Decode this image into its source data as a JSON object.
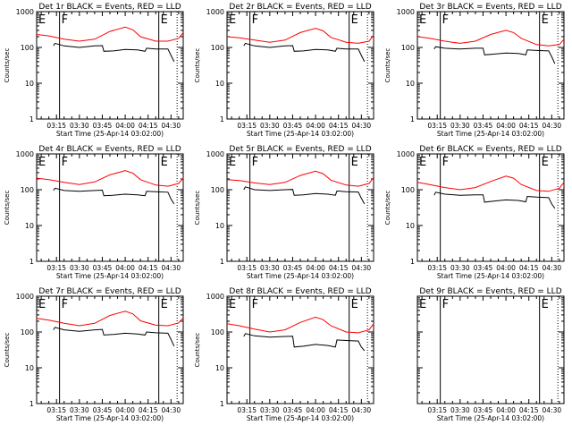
{
  "figure": {
    "x_tick_labels": [
      "03:15",
      "03:30",
      "03:45",
      "04:00",
      "04:15",
      "04:30"
    ],
    "y_tick_labels": [
      "1",
      "10",
      "100",
      "1000"
    ],
    "y_label": "Counts/sec",
    "x_label": "Start Time (25-Apr-14 03:02:00)",
    "colors": {
      "events": "#000000",
      "lld": "#ff0000",
      "axes": "#000000",
      "background": "#ffffff"
    },
    "markers": {
      "e_label": "E",
      "f_label": "F"
    }
  },
  "chart_data": [
    {
      "type": "line",
      "title": "Det 1r BLACK = Events, RED = LLD",
      "xlabel": "Start Time (25-Apr-14 03:02:00)",
      "ylabel": "Counts/sec",
      "xlim": [
        "03:02",
        "04:38"
      ],
      "ylim": [
        1,
        1000
      ],
      "y_scale": "log",
      "x_ticks": [
        "03:15",
        "03:30",
        "03:45",
        "04:00",
        "04:15",
        "04:30"
      ],
      "series": [
        {
          "name": "Events",
          "x": [
            "03:13",
            "03:14",
            "03:20",
            "03:30",
            "03:40",
            "03:45",
            "03:46",
            "03:52",
            "04:00",
            "04:08",
            "04:13",
            "04:14",
            "04:20",
            "04:28",
            "04:30",
            "04:32"
          ],
          "y": [
            110,
            130,
            110,
            100,
            110,
            112,
            78,
            80,
            88,
            85,
            78,
            95,
            90,
            90,
            60,
            40
          ]
        },
        {
          "name": "LLD",
          "x": [
            "03:02",
            "03:10",
            "03:20",
            "03:30",
            "03:40",
            "03:50",
            "04:00",
            "04:05",
            "04:10",
            "04:20",
            "04:28",
            "04:35",
            "04:38"
          ],
          "y": [
            230,
            210,
            170,
            150,
            170,
            280,
            370,
            310,
            200,
            150,
            150,
            180,
            260
          ]
        }
      ],
      "vertical_markers": [
        {
          "label": "E",
          "x": "03:02",
          "style": "solid"
        },
        {
          "label": "F",
          "x": "03:17",
          "style": "solid"
        },
        {
          "label": "E",
          "x": "04:22",
          "style": "solid"
        },
        {
          "label": "",
          "x": "04:34",
          "style": "dotted"
        }
      ]
    },
    {
      "type": "line",
      "title": "Det 2r BLACK = Events, RED = LLD",
      "xlabel": "Start Time (25-Apr-14 03:02:00)",
      "ylabel": "Counts/sec",
      "xlim": [
        "03:02",
        "04:38"
      ],
      "ylim": [
        1,
        1000
      ],
      "y_scale": "log",
      "x_ticks": [
        "03:15",
        "03:30",
        "03:45",
        "04:00",
        "04:15",
        "04:30"
      ],
      "series": [
        {
          "name": "Events",
          "x": [
            "03:13",
            "03:14",
            "03:20",
            "03:30",
            "03:40",
            "03:45",
            "03:46",
            "03:52",
            "04:00",
            "04:08",
            "04:13",
            "04:14",
            "04:20",
            "04:28",
            "04:30",
            "04:32"
          ],
          "y": [
            110,
            130,
            110,
            100,
            110,
            112,
            78,
            80,
            88,
            85,
            78,
            95,
            90,
            90,
            60,
            40
          ]
        },
        {
          "name": "LLD",
          "x": [
            "03:02",
            "03:10",
            "03:20",
            "03:30",
            "03:40",
            "03:50",
            "04:00",
            "04:05",
            "04:10",
            "04:20",
            "04:28",
            "04:35",
            "04:38"
          ],
          "y": [
            200,
            185,
            160,
            140,
            160,
            260,
            340,
            290,
            190,
            140,
            130,
            150,
            220
          ]
        }
      ],
      "vertical_markers": [
        {
          "label": "E",
          "x": "03:02",
          "style": "solid"
        },
        {
          "label": "F",
          "x": "03:17",
          "style": "solid"
        },
        {
          "label": "E",
          "x": "04:22",
          "style": "solid"
        },
        {
          "label": "",
          "x": "04:34",
          "style": "dotted"
        }
      ]
    },
    {
      "type": "line",
      "title": "Det 3r BLACK = Events, RED = LLD",
      "xlabel": "Start Time (25-Apr-14 03:02:00)",
      "ylabel": "Counts/sec",
      "xlim": [
        "03:02",
        "04:38"
      ],
      "ylim": [
        1,
        1000
      ],
      "y_scale": "log",
      "x_ticks": [
        "03:15",
        "03:30",
        "03:45",
        "04:00",
        "04:15",
        "04:30"
      ],
      "series": [
        {
          "name": "Events",
          "x": [
            "03:13",
            "03:14",
            "03:20",
            "03:30",
            "03:40",
            "03:45",
            "03:46",
            "03:52",
            "04:00",
            "04:08",
            "04:13",
            "04:14",
            "04:20",
            "04:28",
            "04:30",
            "04:32"
          ],
          "y": [
            90,
            105,
            95,
            90,
            95,
            95,
            62,
            65,
            70,
            68,
            62,
            85,
            82,
            80,
            55,
            35
          ]
        },
        {
          "name": "LLD",
          "x": [
            "03:02",
            "03:10",
            "03:20",
            "03:30",
            "03:40",
            "03:50",
            "04:00",
            "04:05",
            "04:10",
            "04:20",
            "04:28",
            "04:35",
            "04:38"
          ],
          "y": [
            200,
            180,
            150,
            130,
            150,
            230,
            300,
            260,
            180,
            120,
            110,
            120,
            170
          ]
        }
      ],
      "vertical_markers": [
        {
          "label": "E",
          "x": "03:02",
          "style": "solid"
        },
        {
          "label": "F",
          "x": "03:17",
          "style": "solid"
        },
        {
          "label": "E",
          "x": "04:22",
          "style": "solid"
        },
        {
          "label": "",
          "x": "04:34",
          "style": "dotted"
        }
      ]
    },
    {
      "type": "line",
      "title": "Det 4r BLACK = Events, RED = LLD",
      "xlabel": "Start Time (25-Apr-14 03:02:00)",
      "ylabel": "Counts/sec",
      "xlim": [
        "03:02",
        "04:38"
      ],
      "ylim": [
        1,
        1000
      ],
      "y_scale": "log",
      "x_ticks": [
        "03:15",
        "03:30",
        "03:45",
        "04:00",
        "04:15",
        "04:30"
      ],
      "series": [
        {
          "name": "Events",
          "x": [
            "03:13",
            "03:14",
            "03:20",
            "03:30",
            "03:40",
            "03:45",
            "03:46",
            "03:52",
            "04:00",
            "04:08",
            "04:13",
            "04:14",
            "04:20",
            "04:28",
            "04:30",
            "04:32"
          ],
          "y": [
            95,
            110,
            95,
            90,
            95,
            97,
            68,
            70,
            75,
            72,
            68,
            90,
            88,
            85,
            55,
            40
          ]
        },
        {
          "name": "LLD",
          "x": [
            "03:02",
            "03:10",
            "03:20",
            "03:30",
            "03:40",
            "03:50",
            "04:00",
            "04:05",
            "04:10",
            "04:20",
            "04:28",
            "04:35",
            "04:38"
          ],
          "y": [
            210,
            190,
            160,
            140,
            165,
            260,
            340,
            290,
            190,
            135,
            125,
            150,
            210
          ]
        }
      ],
      "vertical_markers": [
        {
          "label": "E",
          "x": "03:02",
          "style": "solid"
        },
        {
          "label": "F",
          "x": "03:17",
          "style": "solid"
        },
        {
          "label": "E",
          "x": "04:22",
          "style": "solid"
        },
        {
          "label": "",
          "x": "04:34",
          "style": "dotted"
        }
      ]
    },
    {
      "type": "line",
      "title": "Det 5r BLACK = Events, RED = LLD",
      "xlabel": "Start Time (25-Apr-14 03:02:00)",
      "ylabel": "Counts/sec",
      "xlim": [
        "03:02",
        "04:38"
      ],
      "ylim": [
        1,
        1000
      ],
      "y_scale": "log",
      "x_ticks": [
        "03:15",
        "03:30",
        "03:45",
        "04:00",
        "04:15",
        "04:30"
      ],
      "series": [
        {
          "name": "Events",
          "x": [
            "03:13",
            "03:14",
            "03:20",
            "03:30",
            "03:40",
            "03:45",
            "03:46",
            "03:52",
            "04:00",
            "04:08",
            "04:13",
            "04:14",
            "04:20",
            "04:28",
            "04:30",
            "04:32"
          ],
          "y": [
            100,
            120,
            100,
            95,
            100,
            102,
            70,
            72,
            78,
            75,
            70,
            92,
            88,
            86,
            58,
            40
          ]
        },
        {
          "name": "LLD",
          "x": [
            "03:02",
            "03:10",
            "03:20",
            "03:30",
            "03:40",
            "03:50",
            "04:00",
            "04:05",
            "04:10",
            "04:20",
            "04:28",
            "04:35",
            "04:38"
          ],
          "y": [
            190,
            180,
            155,
            140,
            160,
            250,
            330,
            280,
            185,
            135,
            125,
            150,
            220
          ]
        }
      ],
      "vertical_markers": [
        {
          "label": "E",
          "x": "03:02",
          "style": "solid"
        },
        {
          "label": "F",
          "x": "03:17",
          "style": "solid"
        },
        {
          "label": "E",
          "x": "04:22",
          "style": "solid"
        },
        {
          "label": "",
          "x": "04:34",
          "style": "dotted"
        }
      ]
    },
    {
      "type": "line",
      "title": "Det 6r BLACK = Events, RED = LLD",
      "xlabel": "Start Time (25-Apr-14 03:02:00)",
      "ylabel": "Counts/sec",
      "xlim": [
        "03:02",
        "04:38"
      ],
      "ylim": [
        1,
        1000
      ],
      "y_scale": "log",
      "x_ticks": [
        "03:15",
        "03:30",
        "03:45",
        "04:00",
        "04:15",
        "04:30"
      ],
      "series": [
        {
          "name": "Events",
          "x": [
            "03:13",
            "03:14",
            "03:20",
            "03:30",
            "03:40",
            "03:45",
            "03:46",
            "03:52",
            "04:00",
            "04:08",
            "04:13",
            "04:14",
            "04:20",
            "04:28",
            "04:30",
            "04:32"
          ],
          "y": [
            70,
            85,
            75,
            70,
            72,
            72,
            45,
            48,
            52,
            50,
            46,
            65,
            62,
            60,
            40,
            30
          ]
        },
        {
          "name": "LLD",
          "x": [
            "03:02",
            "03:10",
            "03:20",
            "03:30",
            "03:40",
            "03:50",
            "04:00",
            "04:05",
            "04:10",
            "04:20",
            "04:28",
            "04:35",
            "04:38"
          ],
          "y": [
            160,
            140,
            115,
            100,
            115,
            170,
            240,
            210,
            140,
            95,
            90,
            110,
            160
          ]
        }
      ],
      "vertical_markers": [
        {
          "label": "E",
          "x": "03:02",
          "style": "solid"
        },
        {
          "label": "F",
          "x": "03:17",
          "style": "solid"
        },
        {
          "label": "E",
          "x": "04:22",
          "style": "solid"
        },
        {
          "label": "",
          "x": "04:34",
          "style": "dotted"
        }
      ]
    },
    {
      "type": "line",
      "title": "Det 7r BLACK = Events, RED = LLD",
      "xlabel": "Start Time (25-Apr-14 03:02:00)",
      "ylabel": "Counts/sec",
      "xlim": [
        "03:02",
        "04:38"
      ],
      "ylim": [
        1,
        1000
      ],
      "y_scale": "log",
      "x_ticks": [
        "03:15",
        "03:30",
        "03:45",
        "04:00",
        "04:15",
        "04:30"
      ],
      "series": [
        {
          "name": "Events",
          "x": [
            "03:13",
            "03:14",
            "03:20",
            "03:30",
            "03:40",
            "03:45",
            "03:46",
            "03:52",
            "04:00",
            "04:08",
            "04:13",
            "04:14",
            "04:20",
            "04:28",
            "04:30",
            "04:32"
          ],
          "y": [
            115,
            135,
            115,
            105,
            115,
            118,
            82,
            85,
            92,
            88,
            82,
            100,
            95,
            92,
            62,
            40
          ]
        },
        {
          "name": "LLD",
          "x": [
            "03:02",
            "03:10",
            "03:20",
            "03:30",
            "03:40",
            "03:50",
            "04:00",
            "04:05",
            "04:10",
            "04:20",
            "04:28",
            "04:35",
            "04:38"
          ],
          "y": [
            240,
            215,
            175,
            150,
            175,
            290,
            380,
            320,
            205,
            155,
            150,
            180,
            250
          ]
        }
      ],
      "vertical_markers": [
        {
          "label": "E",
          "x": "03:02",
          "style": "solid"
        },
        {
          "label": "F",
          "x": "03:17",
          "style": "solid"
        },
        {
          "label": "E",
          "x": "04:22",
          "style": "solid"
        },
        {
          "label": "",
          "x": "04:34",
          "style": "dotted"
        }
      ]
    },
    {
      "type": "line",
      "title": "Det 8r BLACK = Events, RED = LLD",
      "xlabel": "Start Time (25-Apr-14 03:02:00)",
      "ylabel": "Counts/sec",
      "xlim": [
        "03:02",
        "04:38"
      ],
      "ylim": [
        1,
        1000
      ],
      "y_scale": "log",
      "x_ticks": [
        "03:15",
        "03:30",
        "03:45",
        "04:00",
        "04:15",
        "04:30"
      ],
      "series": [
        {
          "name": "Events",
          "x": [
            "03:13",
            "03:14",
            "03:20",
            "03:30",
            "03:40",
            "03:45",
            "03:46",
            "03:52",
            "04:00",
            "04:08",
            "04:13",
            "04:14",
            "04:20",
            "04:28",
            "04:30",
            "04:32"
          ],
          "y": [
            75,
            90,
            78,
            72,
            75,
            76,
            38,
            40,
            45,
            42,
            38,
            60,
            58,
            56,
            38,
            30
          ]
        },
        {
          "name": "LLD",
          "x": [
            "03:02",
            "03:10",
            "03:20",
            "03:30",
            "03:40",
            "03:50",
            "04:00",
            "04:05",
            "04:10",
            "04:20",
            "04:28",
            "04:35",
            "04:38"
          ],
          "y": [
            170,
            150,
            120,
            100,
            115,
            185,
            260,
            220,
            150,
            100,
            95,
            115,
            170
          ]
        }
      ],
      "vertical_markers": [
        {
          "label": "E",
          "x": "03:02",
          "style": "solid"
        },
        {
          "label": "F",
          "x": "03:17",
          "style": "solid"
        },
        {
          "label": "E",
          "x": "04:22",
          "style": "solid"
        },
        {
          "label": "",
          "x": "04:34",
          "style": "dotted"
        }
      ]
    },
    {
      "type": "line",
      "title": "Det 9r BLACK = Events, RED = LLD",
      "xlabel": "Start Time (25-Apr-14 03:02:00)",
      "ylabel": "",
      "xlim": [
        "03:02",
        "04:38"
      ],
      "ylim": [
        1,
        1000
      ],
      "y_scale": "log",
      "show_y_axis_labels": false,
      "x_ticks": [
        "03:15",
        "03:30",
        "03:45",
        "04:00",
        "04:15",
        "04:30"
      ],
      "series": [],
      "vertical_markers": [
        {
          "label": "E",
          "x": "03:02",
          "style": "solid"
        },
        {
          "label": "F",
          "x": "03:17",
          "style": "solid"
        },
        {
          "label": "E",
          "x": "04:22",
          "style": "solid"
        },
        {
          "label": "",
          "x": "04:34",
          "style": "dotted"
        }
      ]
    }
  ]
}
